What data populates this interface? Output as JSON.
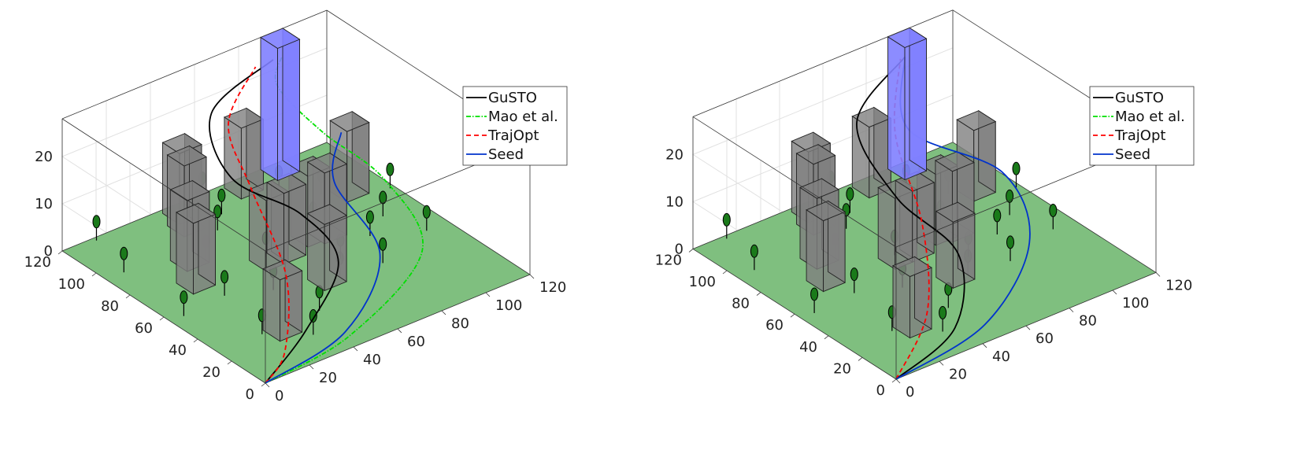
{
  "chart_data": [
    {
      "type": "line",
      "panel": "left",
      "xlim": [
        0,
        120
      ],
      "ylim": [
        0,
        120
      ],
      "zlim": [
        0,
        28
      ],
      "x_ticks": [
        "0",
        "20",
        "40",
        "60",
        "80",
        "100",
        "120"
      ],
      "y_ticks": [
        "0",
        "20",
        "40",
        "60",
        "80",
        "100",
        "120"
      ],
      "z_ticks": [
        "0",
        "10",
        "20"
      ],
      "grid": true,
      "legend_position": "top-right",
      "goal_region": {
        "x": 90,
        "y": 110,
        "size": 10,
        "height": 28,
        "color": "#7f7fff"
      },
      "ground_color": "#7fbf7f",
      "obstacle_color": "#808080",
      "buildings": [
        {
          "x": 22,
          "y": 20,
          "w": 10,
          "d": 10,
          "h": 13
        },
        {
          "x": 18,
          "y": 66,
          "w": 10,
          "d": 10,
          "h": 15
        },
        {
          "x": 26,
          "y": 80,
          "w": 10,
          "d": 10,
          "h": 15
        },
        {
          "x": 48,
          "y": 62,
          "w": 10,
          "d": 10,
          "h": 15
        },
        {
          "x": 56,
          "y": 62,
          "w": 10,
          "d": 10,
          "h": 15
        },
        {
          "x": 40,
          "y": 100,
          "w": 10,
          "d": 10,
          "h": 15
        },
        {
          "x": 44,
          "y": 108,
          "w": 10,
          "d": 10,
          "h": 15
        },
        {
          "x": 56,
          "y": 38,
          "w": 10,
          "d": 10,
          "h": 14
        },
        {
          "x": 70,
          "y": 66,
          "w": 10,
          "d": 10,
          "h": 15
        },
        {
          "x": 76,
          "y": 64,
          "w": 10,
          "d": 10,
          "h": 15
        },
        {
          "x": 72,
          "y": 108,
          "w": 10,
          "d": 10,
          "h": 15
        },
        {
          "x": 100,
          "y": 82,
          "w": 10,
          "d": 10,
          "h": 15
        }
      ],
      "trees": [
        [
          6,
          56
        ],
        [
          8,
          94
        ],
        [
          14,
          118
        ],
        [
          20,
          28
        ],
        [
          26,
          58
        ],
        [
          34,
          16
        ],
        [
          36,
          82
        ],
        [
          42,
          50
        ],
        [
          46,
          28
        ],
        [
          52,
          96
        ],
        [
          54,
          70
        ],
        [
          56,
          112
        ],
        [
          60,
          104
        ],
        [
          62,
          118
        ],
        [
          66,
          42
        ],
        [
          74,
          52
        ],
        [
          80,
          76
        ],
        [
          84,
          40
        ],
        [
          92,
          58
        ],
        [
          104,
          66
        ],
        [
          110,
          48
        ],
        [
          86,
          104
        ],
        [
          96,
          92
        ],
        [
          118,
          80
        ]
      ],
      "series": [
        {
          "name": "GuSTO",
          "color": "#000000",
          "dash": "",
          "points": [
            [
              0,
              0,
              0
            ],
            [
              30,
              15,
              2
            ],
            [
              60,
              35,
              6
            ],
            [
              62,
              60,
              10
            ],
            [
              50,
              85,
              14
            ],
            [
              60,
              110,
              20
            ],
            [
              88,
              110,
              26
            ]
          ]
        },
        {
          "name": "Mao et al.",
          "color": "#00e000",
          "dash": "6 2 1.5 2",
          "points": [
            [
              0,
              0,
              0
            ],
            [
              40,
              2,
              2
            ],
            [
              88,
              22,
              6
            ],
            [
              100,
              60,
              10
            ],
            [
              95,
              90,
              14
            ],
            [
              90,
              110,
              20
            ],
            [
              92,
              110,
              26
            ]
          ]
        },
        {
          "name": "TrajOpt",
          "color": "#ff0000",
          "dash": "6 4",
          "points": [
            [
              0,
              0,
              0
            ],
            [
              15,
              8,
              2
            ],
            [
              40,
              40,
              6
            ],
            [
              55,
              80,
              12
            ],
            [
              60,
              100,
              20
            ],
            [
              80,
              110,
              26
            ]
          ]
        },
        {
          "name": "Seed",
          "color": "#0033cc",
          "dash": "",
          "points": [
            [
              0,
              0,
              0
            ],
            [
              40,
              5,
              2
            ],
            [
              75,
              30,
              6
            ],
            [
              85,
              70,
              10
            ],
            [
              92,
              75,
              18
            ]
          ]
        }
      ]
    },
    {
      "type": "line",
      "panel": "right",
      "xlim": [
        0,
        120
      ],
      "ylim": [
        0,
        120
      ],
      "zlim": [
        0,
        28
      ],
      "x_ticks": [
        "0",
        "20",
        "40",
        "60",
        "80",
        "100",
        "120"
      ],
      "y_ticks": [
        "0",
        "20",
        "40",
        "60",
        "80",
        "100",
        "120"
      ],
      "z_ticks": [
        "0",
        "10",
        "20"
      ],
      "grid": true,
      "legend_position": "top-right",
      "goal_region": {
        "x": 90,
        "y": 110,
        "size": 10,
        "height": 28,
        "color": "#7f7fff"
      },
      "ground_color": "#7fbf7f",
      "obstacle_color": "#808080",
      "buildings": [
        {
          "x": 22,
          "y": 20,
          "w": 10,
          "d": 10,
          "h": 13
        },
        {
          "x": 18,
          "y": 66,
          "w": 10,
          "d": 10,
          "h": 15
        },
        {
          "x": 26,
          "y": 80,
          "w": 10,
          "d": 10,
          "h": 15
        },
        {
          "x": 48,
          "y": 62,
          "w": 10,
          "d": 10,
          "h": 15
        },
        {
          "x": 56,
          "y": 62,
          "w": 10,
          "d": 10,
          "h": 15
        },
        {
          "x": 40,
          "y": 100,
          "w": 10,
          "d": 10,
          "h": 15
        },
        {
          "x": 44,
          "y": 108,
          "w": 10,
          "d": 10,
          "h": 15
        },
        {
          "x": 56,
          "y": 38,
          "w": 10,
          "d": 10,
          "h": 14
        },
        {
          "x": 70,
          "y": 66,
          "w": 10,
          "d": 10,
          "h": 15
        },
        {
          "x": 76,
          "y": 64,
          "w": 10,
          "d": 10,
          "h": 15
        },
        {
          "x": 72,
          "y": 108,
          "w": 10,
          "d": 10,
          "h": 15
        },
        {
          "x": 100,
          "y": 82,
          "w": 10,
          "d": 10,
          "h": 15
        }
      ],
      "trees": [
        [
          6,
          56
        ],
        [
          8,
          94
        ],
        [
          14,
          118
        ],
        [
          20,
          28
        ],
        [
          26,
          58
        ],
        [
          34,
          16
        ],
        [
          36,
          82
        ],
        [
          42,
          50
        ],
        [
          46,
          28
        ],
        [
          52,
          96
        ],
        [
          54,
          70
        ],
        [
          56,
          112
        ],
        [
          60,
          104
        ],
        [
          62,
          118
        ],
        [
          66,
          42
        ],
        [
          74,
          52
        ],
        [
          80,
          76
        ],
        [
          84,
          40
        ],
        [
          92,
          58
        ],
        [
          104,
          66
        ],
        [
          110,
          48
        ],
        [
          86,
          104
        ],
        [
          96,
          92
        ],
        [
          118,
          80
        ]
      ],
      "series": [
        {
          "name": "GuSTO",
          "color": "#000000",
          "dash": "",
          "points": [
            [
              0,
              0,
              0
            ],
            [
              35,
              10,
              2
            ],
            [
              60,
              40,
              6
            ],
            [
              55,
              70,
              12
            ],
            [
              60,
              100,
              20
            ],
            [
              90,
              110,
              26
            ]
          ]
        },
        {
          "name": "Mao et al.",
          "color": "#00e000",
          "dash": "6 2 1.5 2",
          "points": [
            [
              0,
              0,
              0
            ],
            [
              1,
              0,
              0
            ]
          ]
        },
        {
          "name": "TrajOpt",
          "color": "#ff0000",
          "dash": "6 4",
          "points": [
            [
              0,
              0,
              0
            ],
            [
              30,
              20,
              4
            ],
            [
              55,
              55,
              10
            ],
            [
              70,
              90,
              18
            ],
            [
              88,
              110,
              26
            ]
          ]
        },
        {
          "name": "Seed",
          "color": "#0033cc",
          "dash": "",
          "points": [
            [
              0,
              0,
              0
            ],
            [
              45,
              5,
              2
            ],
            [
              85,
              30,
              6
            ],
            [
              100,
              65,
              10
            ],
            [
              80,
              95,
              16
            ],
            [
              90,
              110,
              26
            ]
          ]
        }
      ]
    }
  ]
}
